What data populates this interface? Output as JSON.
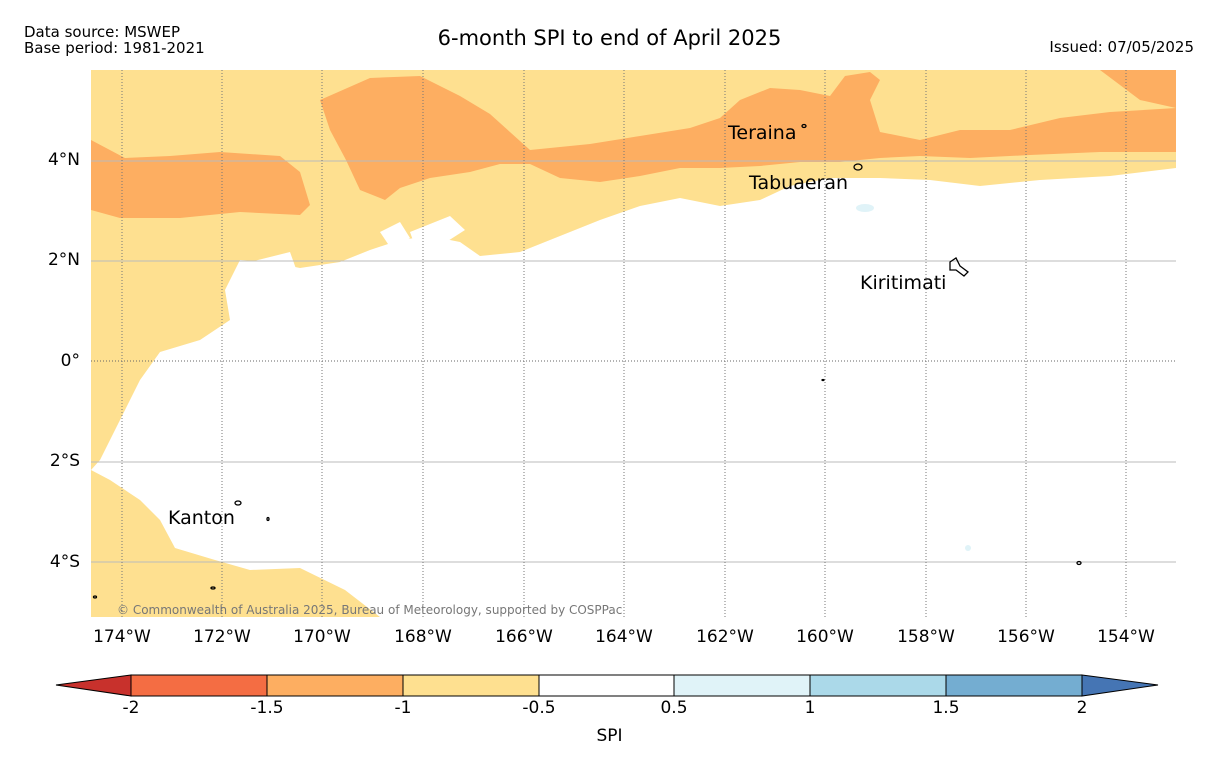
{
  "header": {
    "source_line": "Data source: MSWEP",
    "base_line": "Base period: 1981-2021",
    "title": "6-month SPI to end of April 2025",
    "issued": "Issued: 07/05/2025"
  },
  "map": {
    "lat_labels": [
      "4°N",
      "2°N",
      "0°",
      "2°S",
      "4°S"
    ],
    "lon_labels": [
      "174°W",
      "172°W",
      "170°W",
      "168°W",
      "166°W",
      "164°W",
      "162°W",
      "160°W",
      "158°W",
      "156°W",
      "154°W"
    ],
    "places": {
      "teraina": "Teraina",
      "tabuaeran": "Tabuaeran",
      "kiritimati": "Kiritimati",
      "kanton": "Kanton"
    },
    "copyright": "© Commonwealth of Australia 2025, Bureau of Meteorology, supported by COSPPac",
    "colors": {
      "spi_below_-2": "#c8312c",
      "spi_-2_to_-1.5": "#f46d43",
      "spi_-1.5_to_-1": "#fdae61",
      "spi_-1_to_-0.5": "#fee090",
      "spi_-0.5_to_0.5": "#ffffff",
      "spi_0.5_to_1": "#e0f3f8",
      "spi_1_to_1.5": "#abd9e9",
      "spi_1.5_to_2": "#74add1",
      "spi_above_2": "#4575b4"
    }
  },
  "colorbar": {
    "ticks": [
      "-2",
      "-1.5",
      "-1",
      "-0.5",
      "0.5",
      "1",
      "1.5",
      "2"
    ],
    "label": "SPI"
  }
}
